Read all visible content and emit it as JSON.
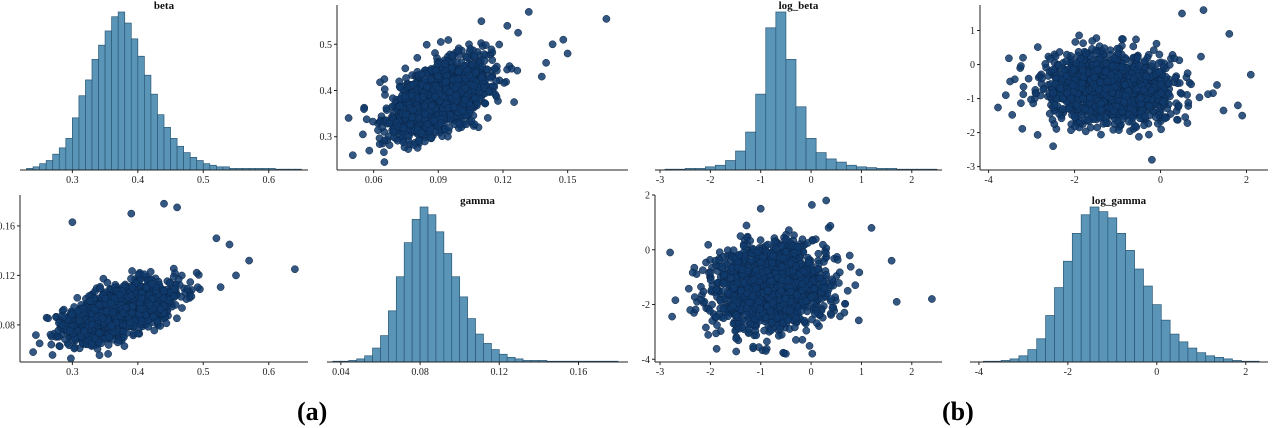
{
  "figure_labels": [
    "(a)",
    "(b)"
  ],
  "colors": {
    "bar_fill": "#5a95b8",
    "bar_edge": "#2a5775",
    "point": "#0f3a6b"
  },
  "chart_data": [
    {
      "type": "bar",
      "title": "beta",
      "xlabel": "",
      "ylabel": "",
      "xlim": [
        0.22,
        0.66
      ],
      "xticks": [
        "0.3",
        "0.4",
        "0.5",
        "0.6"
      ],
      "bins_x": [
        0.235,
        0.245,
        0.255,
        0.265,
        0.275,
        0.285,
        0.295,
        0.305,
        0.315,
        0.325,
        0.335,
        0.345,
        0.355,
        0.365,
        0.375,
        0.385,
        0.395,
        0.405,
        0.415,
        0.425,
        0.435,
        0.445,
        0.455,
        0.465,
        0.475,
        0.485,
        0.495,
        0.505,
        0.515,
        0.525,
        0.535,
        0.545,
        0.555,
        0.565,
        0.575,
        0.585,
        0.595,
        0.605,
        0.615,
        0.625,
        0.635,
        0.645
      ],
      "counts": [
        1,
        2,
        4,
        6,
        10,
        14,
        20,
        33,
        47,
        57,
        70,
        79,
        88,
        97,
        100,
        93,
        83,
        72,
        60,
        48,
        35,
        27,
        20,
        15,
        11,
        8,
        6,
        4,
        3,
        2,
        2,
        1,
        1,
        1,
        1,
        1,
        1,
        1,
        0.5,
        0.5,
        0.5,
        0.5
      ]
    },
    {
      "type": "scatter",
      "title": "",
      "xlim": [
        0.043,
        0.178
      ],
      "ylim": [
        0.228,
        0.585
      ],
      "xticks": [
        "0.06",
        "0.09",
        "0.12",
        "0.15"
      ],
      "yticks": [
        "0.3",
        "0.4",
        "0.5"
      ],
      "cloud": {
        "center": [
          0.09,
          0.38
        ],
        "spread": [
          0.012,
          0.042
        ],
        "corr": 0.55,
        "n": 1400
      },
      "outliers": [
        [
          0.168,
          0.555
        ],
        [
          0.148,
          0.51
        ],
        [
          0.132,
          0.57
        ],
        [
          0.14,
          0.46
        ],
        [
          0.15,
          0.48
        ],
        [
          0.055,
          0.305
        ],
        [
          0.058,
          0.27
        ],
        [
          0.122,
          0.54
        ],
        [
          0.127,
          0.525
        ],
        [
          0.11,
          0.55
        ],
        [
          0.138,
          0.43
        ],
        [
          0.065,
          0.245
        ],
        [
          0.143,
          0.5
        ]
      ]
    },
    {
      "type": "bar",
      "title": "log_beta",
      "xlabel": "",
      "ylabel": "",
      "xlim": [
        -3.1,
        2.6
      ],
      "xticks": [
        "-3",
        "-2",
        "-1",
        "0",
        "1",
        "2"
      ],
      "bins_x": [
        -2.8,
        -2.6,
        -2.4,
        -2.2,
        -2.0,
        -1.8,
        -1.6,
        -1.4,
        -1.2,
        -1.0,
        -0.8,
        -0.6,
        -0.4,
        -0.2,
        0.0,
        0.2,
        0.4,
        0.6,
        0.8,
        1.0,
        1.2,
        1.4,
        1.6,
        1.8,
        2.0,
        2.2,
        2.4
      ],
      "counts": [
        0.5,
        0.5,
        1,
        1,
        2,
        3,
        6,
        12,
        24,
        48,
        90,
        100,
        70,
        40,
        20,
        11,
        7,
        5,
        3,
        2,
        1.5,
        1,
        1,
        0.5,
        0.5,
        0.5,
        0.5
      ]
    },
    {
      "type": "scatter",
      "title": "",
      "xlim": [
        -4.2,
        2.5
      ],
      "ylim": [
        -3.1,
        1.75
      ],
      "xticks": [
        "-4",
        "-2",
        "0",
        "2"
      ],
      "yticks": [
        "-3",
        "-2",
        "-1",
        "0",
        "1"
      ],
      "cloud": {
        "center": [
          -1.2,
          -0.7
        ],
        "spread": [
          0.75,
          0.5
        ],
        "corr": -0.05,
        "n": 1500
      },
      "outliers": [
        [
          2.1,
          -0.3
        ],
        [
          1.9,
          -1.5
        ],
        [
          -3.5,
          -0.5
        ],
        [
          -3.2,
          0.2
        ],
        [
          1.0,
          1.6
        ],
        [
          -0.2,
          -2.8
        ],
        [
          -2.5,
          -2.4
        ],
        [
          1.6,
          0.9
        ],
        [
          0.5,
          1.5
        ],
        [
          -3.6,
          -0.9
        ],
        [
          1.8,
          -1.2
        ]
      ]
    },
    {
      "type": "scatter",
      "title": "",
      "xlim": [
        0.22,
        0.66
      ],
      "ylim": [
        0.05,
        0.185
      ],
      "xticks": [
        "0.3",
        "0.4",
        "0.5",
        "0.6"
      ],
      "yticks": [
        "0.08",
        "0.12",
        "0.16"
      ],
      "cloud": {
        "center": [
          0.37,
          0.09
        ],
        "spread": [
          0.04,
          0.012
        ],
        "corr": 0.55,
        "n": 1400
      },
      "outliers": [
        [
          0.64,
          0.125
        ],
        [
          0.57,
          0.132
        ],
        [
          0.44,
          0.178
        ],
        [
          0.46,
          0.175
        ],
        [
          0.39,
          0.17
        ],
        [
          0.24,
          0.058
        ],
        [
          0.25,
          0.065
        ],
        [
          0.54,
          0.145
        ],
        [
          0.52,
          0.15
        ],
        [
          0.3,
          0.163
        ],
        [
          0.55,
          0.12
        ]
      ]
    },
    {
      "type": "bar",
      "title": "gamma",
      "xlabel": "",
      "ylabel": "",
      "xlim": [
        0.033,
        0.185
      ],
      "xticks": [
        "0.04",
        "0.08",
        "0.12",
        "0.16"
      ],
      "bins_x": [
        0.038,
        0.042,
        0.046,
        0.05,
        0.054,
        0.058,
        0.062,
        0.066,
        0.07,
        0.074,
        0.078,
        0.082,
        0.086,
        0.09,
        0.094,
        0.098,
        0.102,
        0.106,
        0.11,
        0.114,
        0.118,
        0.122,
        0.126,
        0.13,
        0.134,
        0.138,
        0.142,
        0.146,
        0.15,
        0.154,
        0.158,
        0.162,
        0.166,
        0.17,
        0.174,
        0.178
      ],
      "counts": [
        0.5,
        0.5,
        1,
        2,
        4,
        9,
        17,
        33,
        55,
        77,
        92,
        100,
        95,
        84,
        70,
        55,
        42,
        28,
        18,
        12,
        8,
        5,
        3,
        2,
        1,
        1,
        1,
        0.5,
        0.5,
        0.5,
        0.5,
        0.5,
        0.5,
        0.5,
        0.5,
        0.5
      ]
    },
    {
      "type": "scatter",
      "title": "",
      "xlim": [
        -3.1,
        2.6
      ],
      "ylim": [
        -4.1,
        2.0
      ],
      "xticks": [
        "-3",
        "-2",
        "-1",
        "0",
        "1",
        "2"
      ],
      "yticks": [
        "-4",
        "-2",
        "0",
        "2"
      ],
      "cloud": {
        "center": [
          -0.8,
          -1.4
        ],
        "spread": [
          0.55,
          0.8
        ],
        "corr": 0.05,
        "n": 1500
      },
      "outliers": [
        [
          2.4,
          -1.8
        ],
        [
          -2.8,
          -0.1
        ],
        [
          1.6,
          -0.4
        ],
        [
          1.7,
          -1.9
        ],
        [
          -0.9,
          -3.7
        ],
        [
          -0.5,
          -3.8
        ],
        [
          0.3,
          1.8
        ],
        [
          -1.0,
          1.5
        ],
        [
          1.2,
          0.8
        ],
        [
          -2.4,
          -2.2
        ]
      ]
    },
    {
      "type": "bar",
      "title": "log_gamma",
      "xlabel": "",
      "ylabel": "",
      "xlim": [
        -4.2,
        2.5
      ],
      "xticks": [
        "-4",
        "-2",
        "0",
        "2"
      ],
      "bins_x": [
        -3.8,
        -3.6,
        -3.4,
        -3.2,
        -3.0,
        -2.8,
        -2.6,
        -2.4,
        -2.2,
        -2.0,
        -1.8,
        -1.6,
        -1.4,
        -1.2,
        -1.0,
        -0.8,
        -0.6,
        -0.4,
        -0.2,
        0.0,
        0.2,
        0.4,
        0.6,
        0.8,
        1.0,
        1.2,
        1.4,
        1.6,
        1.8,
        2.0,
        2.2
      ],
      "counts": [
        0.5,
        0.5,
        1,
        2,
        4,
        8,
        15,
        30,
        48,
        65,
        83,
        95,
        100,
        97,
        93,
        83,
        72,
        60,
        49,
        37,
        27,
        18,
        13,
        9,
        6,
        4,
        3,
        2,
        1,
        0.5,
        0.5
      ]
    }
  ]
}
